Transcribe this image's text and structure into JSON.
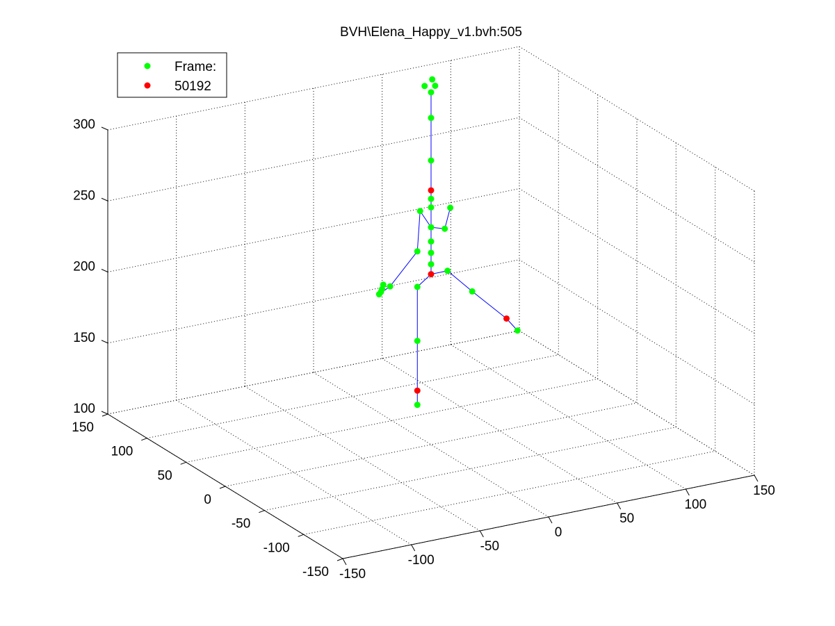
{
  "chart_data": {
    "type": "scatter",
    "title": "BVH\\Elena_Happy_v1.bvh:505",
    "legend": {
      "placement": "top-left",
      "entries": [
        {
          "label": "Frame:",
          "color": "#00ff00"
        },
        {
          "label": "50192",
          "color": "#ff0000"
        }
      ]
    },
    "xlim": [
      -150,
      150
    ],
    "ylim": [
      -150,
      150
    ],
    "zlim": [
      100,
      300
    ],
    "x_ticks": [
      "-150",
      "-100",
      "-50",
      "0",
      "50",
      "100",
      "150"
    ],
    "y_ticks": [
      "-150",
      "-100",
      "-50",
      "0",
      "50",
      "100",
      "150"
    ],
    "z_ticks": [
      "100",
      "150",
      "200",
      "250",
      "300"
    ],
    "grid": true,
    "colors": {
      "joint": "#00ff00",
      "highlight": "#ff0000",
      "bone": "#0000ff"
    },
    "joints": [
      {
        "id": "hips",
        "x": 0,
        "y": 0,
        "z": 220,
        "hl": true
      },
      {
        "id": "spine1",
        "x": 0,
        "y": 0,
        "z": 227
      },
      {
        "id": "spine2",
        "x": 0,
        "y": 0,
        "z": 235
      },
      {
        "id": "spine3",
        "x": 0,
        "y": 0,
        "z": 243
      },
      {
        "id": "spine4",
        "x": 0,
        "y": 0,
        "z": 253
      },
      {
        "id": "neck",
        "x": 0,
        "y": 0,
        "z": 267
      },
      {
        "id": "neck2",
        "x": 0,
        "y": 0,
        "z": 273
      },
      {
        "id": "head",
        "x": 0,
        "y": 0,
        "z": 279,
        "hl": true
      },
      {
        "id": "headtop",
        "x": 0,
        "y": 0,
        "z": 300
      },
      {
        "id": "ht1",
        "x": 0,
        "y": 0,
        "z": 330
      },
      {
        "id": "ht2",
        "x": 0,
        "y": 0,
        "z": 348
      },
      {
        "id": "ht3",
        "x": 3,
        "y": 0,
        "z": 352
      },
      {
        "id": "ht4",
        "x": -3,
        "y": 3,
        "z": 352
      },
      {
        "id": "ht5",
        "x": 2,
        "y": 2,
        "z": 356
      },
      {
        "id": "rshoulder",
        "x": 10,
        "y": 0,
        "z": 250
      },
      {
        "id": "rarm",
        "x": 14,
        "y": 0,
        "z": 264
      },
      {
        "id": "lshoulder",
        "x": -8,
        "y": 0,
        "z": 266
      },
      {
        "id": "lelbow",
        "x": -10,
        "y": 0,
        "z": 238
      },
      {
        "id": "lwrist",
        "x": -27,
        "y": 5,
        "z": 215
      },
      {
        "id": "lhand1",
        "x": -35,
        "y": 5,
        "z": 211
      },
      {
        "id": "lhand2",
        "x": -32,
        "y": 8,
        "z": 211
      },
      {
        "id": "lhand3",
        "x": -30,
        "y": 10,
        "z": 212
      },
      {
        "id": "lhand4",
        "x": -28,
        "y": 12,
        "z": 214
      },
      {
        "id": "lhip",
        "x": -10,
        "y": 0,
        "z": 213
      },
      {
        "id": "lknee",
        "x": -10,
        "y": 0,
        "z": 175
      },
      {
        "id": "lankle",
        "x": -10,
        "y": 0,
        "z": 140,
        "hl": true
      },
      {
        "id": "ltoe",
        "x": -10,
        "y": 0,
        "z": 130
      },
      {
        "id": "rhip",
        "x": 12,
        "y": 0,
        "z": 220
      },
      {
        "id": "rknee",
        "x": 30,
        "y": 0,
        "z": 202
      },
      {
        "id": "rankle",
        "x": 55,
        "y": 0,
        "z": 178,
        "hl": true
      },
      {
        "id": "rtoe",
        "x": 63,
        "y": 0,
        "z": 168
      }
    ],
    "bones": [
      [
        "ltoe",
        "lankle"
      ],
      [
        "lankle",
        "lknee"
      ],
      [
        "lknee",
        "lhip"
      ],
      [
        "lhip",
        "hips"
      ],
      [
        "hips",
        "rhip"
      ],
      [
        "rhip",
        "rknee"
      ],
      [
        "rknee",
        "rankle"
      ],
      [
        "rankle",
        "rtoe"
      ],
      [
        "hips",
        "spine1"
      ],
      [
        "spine1",
        "spine2"
      ],
      [
        "spine2",
        "spine3"
      ],
      [
        "spine3",
        "spine4"
      ],
      [
        "spine4",
        "neck"
      ],
      [
        "neck",
        "neck2"
      ],
      [
        "neck2",
        "head"
      ],
      [
        "head",
        "headtop"
      ],
      [
        "headtop",
        "ht1"
      ],
      [
        "ht1",
        "ht2"
      ],
      [
        "spine4",
        "rshoulder"
      ],
      [
        "rshoulder",
        "rarm"
      ],
      [
        "spine4",
        "lshoulder"
      ],
      [
        "lshoulder",
        "lelbow"
      ],
      [
        "lelbow",
        "lwrist"
      ],
      [
        "lwrist",
        "lhand1"
      ]
    ]
  }
}
